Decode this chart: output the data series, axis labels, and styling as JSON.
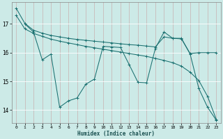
{
  "xlabel": "Humidex (Indice chaleur)",
  "bg_color": "#cceae7",
  "grid_color_v": "#c8b0b0",
  "grid_color_h": "#ffffff",
  "line_color": "#1a7070",
  "line1_x": [
    0,
    1,
    2,
    3,
    4,
    5,
    6,
    7,
    8,
    9,
    10,
    11,
    12,
    13,
    14,
    15,
    16,
    17,
    18,
    19,
    20,
    21,
    22,
    23
  ],
  "line1_y": [
    17.55,
    17.02,
    16.78,
    16.68,
    16.6,
    16.55,
    16.5,
    16.46,
    16.43,
    16.4,
    16.37,
    16.34,
    16.31,
    16.28,
    16.26,
    16.23,
    16.2,
    16.55,
    16.5,
    16.48,
    15.97,
    16.0,
    16.0,
    16.0
  ],
  "line2_x": [
    0,
    1,
    2,
    3,
    4,
    5,
    6,
    7,
    8,
    9,
    10,
    11,
    12,
    13,
    14,
    15,
    16,
    17,
    18,
    19,
    20,
    21,
    22,
    23
  ],
  "line2_y": [
    17.3,
    16.83,
    16.67,
    16.57,
    16.47,
    16.4,
    16.34,
    16.28,
    16.22,
    16.17,
    16.12,
    16.07,
    16.02,
    15.97,
    15.92,
    15.87,
    15.8,
    15.73,
    15.65,
    15.53,
    15.32,
    15.03,
    14.48,
    13.68
  ],
  "line3_x": [
    1,
    2,
    3,
    4,
    5,
    6,
    7,
    8,
    9,
    10,
    11,
    12,
    13,
    14,
    15,
    16,
    17,
    18,
    19,
    20,
    21,
    22,
    23
  ],
  "line3_y": [
    17.0,
    16.72,
    15.75,
    15.95,
    14.1,
    14.32,
    14.42,
    14.9,
    15.08,
    16.22,
    16.2,
    16.18,
    15.58,
    14.97,
    14.95,
    16.15,
    16.72,
    16.5,
    16.5,
    15.95,
    14.75,
    14.1,
    13.65
  ],
  "ylim": [
    13.55,
    17.75
  ],
  "xlim": [
    -0.5,
    23.5
  ],
  "yticks": [
    14,
    15,
    16,
    17
  ],
  "xticks": [
    0,
    1,
    2,
    3,
    4,
    5,
    6,
    7,
    8,
    9,
    10,
    11,
    12,
    13,
    14,
    15,
    16,
    17,
    18,
    19,
    20,
    21,
    22,
    23
  ]
}
